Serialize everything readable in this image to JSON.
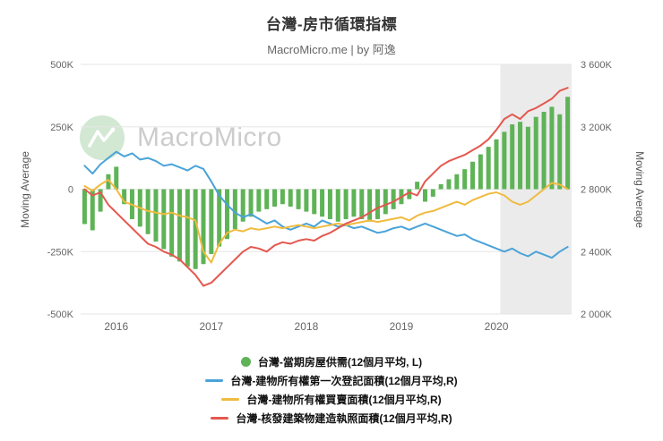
{
  "page": {
    "title": "台灣-房市循環指標",
    "subtitle": "MacroMicro.me | by 阿逸",
    "watermark": "MacroMicro"
  },
  "chart_data": {
    "type": "combo",
    "title": "台灣-房市循環指標",
    "grid": true,
    "legend_position": "bottom",
    "left_axis": {
      "label": "Moving Average",
      "range_k": [
        -500,
        500
      ],
      "ticks": [
        {
          "value": 500,
          "label": "500K"
        },
        {
          "value": 250,
          "label": "250K"
        },
        {
          "value": 0,
          "label": "0"
        },
        {
          "value": -250,
          "label": "-250K"
        },
        {
          "value": -500,
          "label": "-500K"
        }
      ]
    },
    "right_axis": {
      "label": "Moving Average",
      "range_k": [
        2000,
        3600
      ],
      "ticks": [
        {
          "value": 3600,
          "label": "3 600K"
        },
        {
          "value": 3200,
          "label": "3 200K"
        },
        {
          "value": 2800,
          "label": "2 800K"
        },
        {
          "value": 2400,
          "label": "2 400K"
        },
        {
          "value": 2000,
          "label": "2 000K"
        }
      ]
    },
    "x_axis": {
      "tick_labels": [
        "2016",
        "2017",
        "2018",
        "2019",
        "2020"
      ],
      "months": [
        "2015-09",
        "2015-10",
        "2015-11",
        "2015-12",
        "2016-01",
        "2016-02",
        "2016-03",
        "2016-04",
        "2016-05",
        "2016-06",
        "2016-07",
        "2016-08",
        "2016-09",
        "2016-10",
        "2016-11",
        "2016-12",
        "2017-01",
        "2017-02",
        "2017-03",
        "2017-04",
        "2017-05",
        "2017-06",
        "2017-07",
        "2017-08",
        "2017-09",
        "2017-10",
        "2017-11",
        "2017-12",
        "2018-01",
        "2018-02",
        "2018-03",
        "2018-04",
        "2018-05",
        "2018-06",
        "2018-07",
        "2018-08",
        "2018-09",
        "2018-10",
        "2018-11",
        "2018-12",
        "2019-01",
        "2019-02",
        "2019-03",
        "2019-04",
        "2019-05",
        "2019-06",
        "2019-07",
        "2019-08",
        "2019-09",
        "2019-10",
        "2019-11",
        "2019-12",
        "2020-01",
        "2020-02",
        "2020-03",
        "2020-04",
        "2020-05",
        "2020-06",
        "2020-07",
        "2020-08",
        "2020-09",
        "2020-10"
      ]
    },
    "shaded_region": {
      "from_month": "2020-02",
      "to_month": "2020-10",
      "color": "#ebebeb"
    },
    "series": [
      {
        "name": "台灣-當期房屋供需(12個月平均, L)",
        "kind": "bar",
        "axis": "left",
        "color": "#5fb357",
        "unit": "K",
        "values": [
          -140,
          -165,
          -90,
          60,
          90,
          -60,
          -120,
          -150,
          -180,
          -210,
          -240,
          -270,
          -290,
          -310,
          -320,
          -300,
          -260,
          -230,
          -200,
          -160,
          -130,
          -110,
          -90,
          -80,
          -70,
          -60,
          -70,
          -80,
          -90,
          -100,
          -110,
          -120,
          -130,
          -120,
          -110,
          -120,
          -130,
          -120,
          -100,
          -80,
          -60,
          -40,
          30,
          -50,
          -30,
          20,
          40,
          60,
          80,
          110,
          140,
          170,
          200,
          230,
          260,
          270,
          250,
          290,
          310,
          330,
          300,
          370
        ]
      },
      {
        "name": "台灣-建物所有權第一次登記面積(12個月平均,R)",
        "kind": "line",
        "axis": "right",
        "color": "#4aa3d8",
        "unit": "K",
        "values": [
          2950,
          2900,
          2960,
          3000,
          3040,
          3010,
          3030,
          2990,
          3000,
          2980,
          2950,
          2960,
          2940,
          2920,
          2950,
          2930,
          2850,
          2760,
          2700,
          2650,
          2620,
          2640,
          2610,
          2580,
          2600,
          2560,
          2540,
          2560,
          2580,
          2560,
          2600,
          2580,
          2560,
          2570,
          2550,
          2560,
          2540,
          2520,
          2530,
          2550,
          2560,
          2540,
          2560,
          2580,
          2560,
          2540,
          2520,
          2500,
          2510,
          2480,
          2460,
          2440,
          2420,
          2400,
          2420,
          2390,
          2370,
          2400,
          2380,
          2360,
          2400,
          2430
        ]
      },
      {
        "name": "台灣-建物所有權買賣面積(12個月平均,R)",
        "kind": "line",
        "axis": "right",
        "color": "#efbb3f",
        "unit": "K",
        "values": [
          2820,
          2790,
          2830,
          2860,
          2800,
          2720,
          2700,
          2680,
          2660,
          2650,
          2640,
          2650,
          2630,
          2620,
          2600,
          2400,
          2330,
          2450,
          2520,
          2540,
          2530,
          2550,
          2540,
          2550,
          2560,
          2550,
          2560,
          2570,
          2560,
          2550,
          2560,
          2570,
          2580,
          2570,
          2580,
          2590,
          2600,
          2590,
          2600,
          2610,
          2620,
          2600,
          2630,
          2650,
          2660,
          2680,
          2700,
          2720,
          2700,
          2730,
          2750,
          2770,
          2780,
          2760,
          2720,
          2700,
          2720,
          2760,
          2800,
          2840,
          2830,
          2800
        ]
      },
      {
        "name": "台灣-核發建築物建造執照面積(12個月平均,R)",
        "kind": "line",
        "axis": "right",
        "color": "#e4584e",
        "unit": "K",
        "values": [
          2800,
          2760,
          2780,
          2700,
          2650,
          2600,
          2550,
          2500,
          2450,
          2430,
          2400,
          2380,
          2350,
          2300,
          2250,
          2180,
          2200,
          2250,
          2300,
          2350,
          2400,
          2430,
          2420,
          2400,
          2440,
          2460,
          2450,
          2470,
          2480,
          2470,
          2500,
          2520,
          2550,
          2580,
          2600,
          2620,
          2650,
          2680,
          2700,
          2720,
          2750,
          2780,
          2760,
          2850,
          2900,
          2950,
          2980,
          3000,
          3020,
          3050,
          3080,
          3120,
          3180,
          3250,
          3280,
          3250,
          3300,
          3320,
          3350,
          3380,
          3430,
          3450
        ]
      }
    ]
  }
}
